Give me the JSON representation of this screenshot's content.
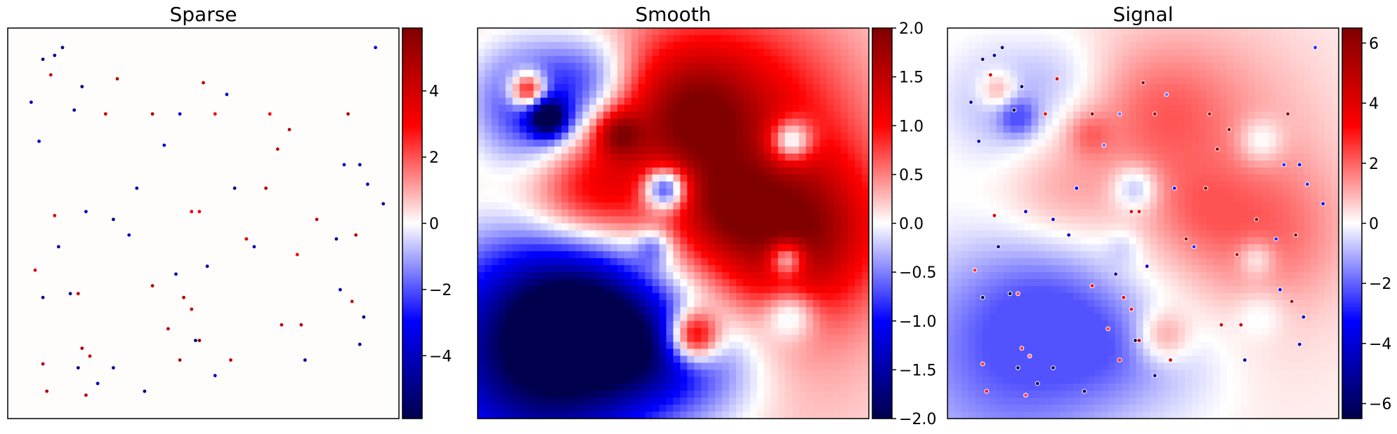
{
  "chart_data": [
    {
      "type": "heatmap",
      "title": "Sparse",
      "colormap": "seismic",
      "colorbar": {
        "range": [
          -5.9,
          5.9
        ],
        "ticks": [
          -4,
          -2,
          0,
          2,
          4
        ],
        "tick_labels": [
          "−4",
          "−2",
          "0",
          "2",
          "4"
        ]
      },
      "description_values": "mostly near-zero field with ~180 isolated point spikes of magnitude up to about 5.9",
      "points": [
        {
          "x": 0.12,
          "y": 0.07,
          "v": -4.5
        },
        {
          "x": 0.14,
          "y": 0.05,
          "v": -5.0
        },
        {
          "x": 0.09,
          "y": 0.08,
          "v": -4.8
        },
        {
          "x": 0.06,
          "y": 0.19,
          "v": -4.2
        },
        {
          "x": 0.19,
          "y": 0.15,
          "v": -5.2
        },
        {
          "x": 0.28,
          "y": 0.13,
          "v": 4.6
        },
        {
          "x": 0.11,
          "y": 0.12,
          "v": 4.0
        },
        {
          "x": 0.08,
          "y": 0.29,
          "v": -3.6
        },
        {
          "x": 0.17,
          "y": 0.21,
          "v": -4.4
        },
        {
          "x": 0.25,
          "y": 0.22,
          "v": 4.2
        },
        {
          "x": 0.37,
          "y": 0.22,
          "v": 4.8
        },
        {
          "x": 0.44,
          "y": 0.22,
          "v": -3.4
        },
        {
          "x": 0.5,
          "y": 0.14,
          "v": 4.4
        },
        {
          "x": 0.56,
          "y": 0.17,
          "v": -3.8
        },
        {
          "x": 0.53,
          "y": 0.22,
          "v": 3.2
        },
        {
          "x": 0.69,
          "y": 0.31,
          "v": 4.2
        },
        {
          "x": 0.67,
          "y": 0.22,
          "v": 3.0
        },
        {
          "x": 0.72,
          "y": 0.26,
          "v": 4.6
        },
        {
          "x": 0.87,
          "y": 0.22,
          "v": 4.8
        },
        {
          "x": 0.9,
          "y": 0.35,
          "v": -4.6
        },
        {
          "x": 0.86,
          "y": 0.35,
          "v": -4.0
        },
        {
          "x": 0.92,
          "y": 0.4,
          "v": -4.2
        },
        {
          "x": 0.96,
          "y": 0.45,
          "v": -4.8
        },
        {
          "x": 0.94,
          "y": 0.05,
          "v": -3.2
        },
        {
          "x": 0.4,
          "y": 0.3,
          "v": -3.6
        },
        {
          "x": 0.33,
          "y": 0.41,
          "v": -4.4
        },
        {
          "x": 0.27,
          "y": 0.49,
          "v": -4.8
        },
        {
          "x": 0.31,
          "y": 0.53,
          "v": -3.8
        },
        {
          "x": 0.12,
          "y": 0.48,
          "v": 4.0
        },
        {
          "x": 0.2,
          "y": 0.47,
          "v": -4.2
        },
        {
          "x": 0.13,
          "y": 0.56,
          "v": -4.4
        },
        {
          "x": 0.47,
          "y": 0.47,
          "v": 3.6
        },
        {
          "x": 0.49,
          "y": 0.47,
          "v": 3.4
        },
        {
          "x": 0.58,
          "y": 0.41,
          "v": -4.8
        },
        {
          "x": 0.66,
          "y": 0.41,
          "v": 4.6
        },
        {
          "x": 0.61,
          "y": 0.54,
          "v": 3.8
        },
        {
          "x": 0.63,
          "y": 0.56,
          "v": -4.2
        },
        {
          "x": 0.79,
          "y": 0.49,
          "v": 4.2
        },
        {
          "x": 0.84,
          "y": 0.54,
          "v": -4.6
        },
        {
          "x": 0.89,
          "y": 0.53,
          "v": 4.4
        },
        {
          "x": 0.74,
          "y": 0.58,
          "v": 3.0
        },
        {
          "x": 0.51,
          "y": 0.61,
          "v": -4.4
        },
        {
          "x": 0.43,
          "y": 0.63,
          "v": -4.0
        },
        {
          "x": 0.37,
          "y": 0.66,
          "v": 4.6
        },
        {
          "x": 0.16,
          "y": 0.68,
          "v": -4.6
        },
        {
          "x": 0.18,
          "y": 0.68,
          "v": 4.4
        },
        {
          "x": 0.09,
          "y": 0.69,
          "v": -4.8
        },
        {
          "x": 0.07,
          "y": 0.62,
          "v": 3.8
        },
        {
          "x": 0.45,
          "y": 0.69,
          "v": 4.8
        },
        {
          "x": 0.47,
          "y": 0.72,
          "v": 4.2
        },
        {
          "x": 0.85,
          "y": 0.67,
          "v": -4.4
        },
        {
          "x": 0.88,
          "y": 0.7,
          "v": 4.0
        },
        {
          "x": 0.91,
          "y": 0.74,
          "v": -4.6
        },
        {
          "x": 0.75,
          "y": 0.76,
          "v": 4.4
        },
        {
          "x": 0.7,
          "y": 0.76,
          "v": 4.2
        },
        {
          "x": 0.41,
          "y": 0.77,
          "v": 4.6
        },
        {
          "x": 0.48,
          "y": 0.8,
          "v": -5.4
        },
        {
          "x": 0.49,
          "y": 0.8,
          "v": 5.6
        },
        {
          "x": 0.19,
          "y": 0.82,
          "v": 4.8
        },
        {
          "x": 0.21,
          "y": 0.84,
          "v": 4.0
        },
        {
          "x": 0.18,
          "y": 0.87,
          "v": -4.8
        },
        {
          "x": 0.27,
          "y": 0.87,
          "v": -4.6
        },
        {
          "x": 0.44,
          "y": 0.85,
          "v": 4.8
        },
        {
          "x": 0.57,
          "y": 0.85,
          "v": 4.6
        },
        {
          "x": 0.76,
          "y": 0.85,
          "v": -4.8
        },
        {
          "x": 0.09,
          "y": 0.86,
          "v": 4.6
        },
        {
          "x": 0.1,
          "y": 0.93,
          "v": 4.8
        },
        {
          "x": 0.2,
          "y": 0.94,
          "v": 4.4
        },
        {
          "x": 0.23,
          "y": 0.91,
          "v": -4.0
        },
        {
          "x": 0.35,
          "y": 0.93,
          "v": -4.8
        },
        {
          "x": 0.53,
          "y": 0.89,
          "v": -3.6
        },
        {
          "x": 0.9,
          "y": 0.81,
          "v": -4.8
        }
      ]
    },
    {
      "type": "heatmap",
      "title": "Smooth",
      "colormap": "seismic",
      "colorbar": {
        "range": [
          -2.0,
          2.0
        ],
        "ticks": [
          2.0,
          1.5,
          1.0,
          0.5,
          0.0,
          -0.5,
          -1.0,
          -1.5,
          -2.0
        ],
        "tick_labels": [
          "2.0",
          "1.5",
          "1.0",
          "0.5",
          "0.0",
          "−0.5",
          "−1.0",
          "−1.5",
          "−2.0"
        ]
      },
      "description_values": "smooth field: negative lobes upper-left and lower-left, positive plateau across middle/right",
      "blobs": [
        {
          "x": 0.5,
          "y": 0.5,
          "r": 0.6,
          "v": 0.9
        },
        {
          "x": 0.72,
          "y": 0.2,
          "r": 0.28,
          "v": 0.5
        },
        {
          "x": 0.55,
          "y": 0.22,
          "r": 0.18,
          "v": 1.1
        },
        {
          "x": 0.83,
          "y": 0.52,
          "r": 0.2,
          "v": 1.3
        },
        {
          "x": 0.64,
          "y": 0.47,
          "r": 0.12,
          "v": 0.7
        },
        {
          "x": 0.28,
          "y": 0.43,
          "r": 0.16,
          "v": 0.8
        },
        {
          "x": 0.18,
          "y": 0.82,
          "r": 0.32,
          "v": -2.5
        },
        {
          "x": 0.28,
          "y": 0.7,
          "r": 0.2,
          "v": -1.0
        },
        {
          "x": 0.42,
          "y": 0.82,
          "r": 0.16,
          "v": -0.9
        },
        {
          "x": 0.6,
          "y": 0.86,
          "r": 0.18,
          "v": -0.7
        },
        {
          "x": 0.15,
          "y": 0.2,
          "r": 0.17,
          "v": -1.4
        },
        {
          "x": 0.3,
          "y": 0.12,
          "r": 0.12,
          "v": -0.6
        },
        {
          "x": 0.13,
          "y": 0.16,
          "r": 0.05,
          "v": 1.8
        },
        {
          "x": 0.18,
          "y": 0.23,
          "r": 0.05,
          "v": -1.8
        },
        {
          "x": 0.48,
          "y": 0.41,
          "r": 0.06,
          "v": -1.9
        },
        {
          "x": 0.8,
          "y": 0.29,
          "r": 0.06,
          "v": -1.4
        },
        {
          "x": 0.55,
          "y": 0.79,
          "r": 0.07,
          "v": 1.8
        },
        {
          "x": 0.79,
          "y": 0.59,
          "r": 0.05,
          "v": -1.4
        },
        {
          "x": 0.8,
          "y": 0.73,
          "r": 0.07,
          "v": -0.8
        },
        {
          "x": 0.36,
          "y": 0.27,
          "r": 0.06,
          "v": 1.1
        },
        {
          "x": 0.45,
          "y": 0.56,
          "r": 0.05,
          "v": -0.7
        }
      ]
    },
    {
      "type": "heatmap",
      "title": "Signal",
      "colormap": "seismic",
      "colorbar": {
        "range": [
          -6.5,
          6.5
        ],
        "ticks": [
          6,
          4,
          2,
          0,
          -2,
          -4,
          -6
        ],
        "tick_labels": [
          "6",
          "4",
          "2",
          "0",
          "−2",
          "−4",
          "−6"
        ]
      },
      "description_values": "sum of Sparse and Smooth (faint smooth background with point spikes)"
    }
  ]
}
